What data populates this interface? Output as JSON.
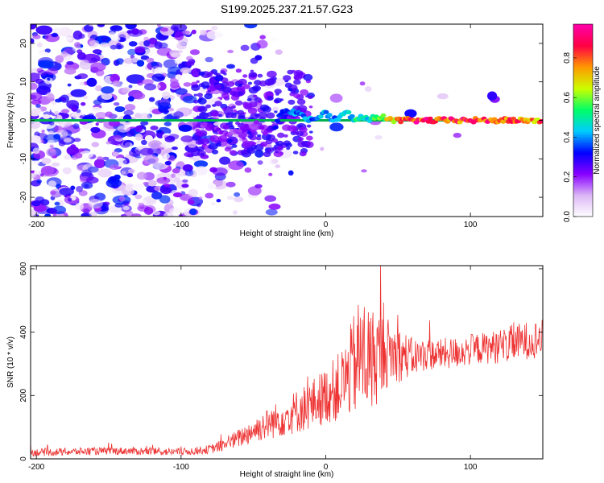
{
  "chart_data": [
    {
      "type": "heatmap",
      "title": "S199.2025.237.21.57.G23",
      "xlabel": "Height of straight line (km)",
      "ylabel": "Frequency (Hz)",
      "xlim": [
        -204,
        150
      ],
      "ylim": [
        -25,
        25
      ],
      "x_ticks": [
        "-200",
        "-100",
        "0",
        "100"
      ],
      "y_ticks": [
        "-20",
        "-10",
        "0",
        "10",
        "20"
      ],
      "colorbar": {
        "label": "Normalized spectral amplitude",
        "range": [
          0,
          0.97
        ],
        "ticks": [
          "0.0",
          "0.2",
          "0.4",
          "0.6",
          "0.8"
        ],
        "colors": [
          "#ffffff",
          "#dcb8f5",
          "#8800ff",
          "#0000ff",
          "#00ccff",
          "#00ff66",
          "#ccff00",
          "#ff9900",
          "#ff0044",
          "#ff00aa"
        ]
      },
      "ridge": {
        "x": [
          -85,
          -78,
          -70,
          -62,
          -55,
          -48,
          -42,
          -35,
          -30,
          -25,
          -20,
          -15,
          -10,
          -5,
          0,
          5,
          10,
          15,
          20,
          25,
          30,
          35,
          40,
          45,
          50,
          55,
          60,
          70,
          80,
          90,
          100,
          110,
          120,
          130,
          140,
          150
        ],
        "freq": [
          -1,
          -2,
          -4,
          -3,
          -2,
          -1,
          -3,
          -2,
          3,
          2,
          2,
          1,
          0,
          1,
          2,
          0,
          1,
          2,
          0,
          1,
          0,
          1,
          1,
          0,
          0,
          0,
          0,
          0,
          0,
          0,
          0,
          0,
          0,
          0,
          0,
          0
        ],
        "amp": [
          0.2,
          0.25,
          0.2,
          0.18,
          0.22,
          0.2,
          0.2,
          0.3,
          0.35,
          0.4,
          0.4,
          0.42,
          0.4,
          0.45,
          0.42,
          0.4,
          0.45,
          0.45,
          0.5,
          0.55,
          0.5,
          0.6,
          0.65,
          0.7,
          0.8,
          0.9,
          0.92,
          0.9,
          0.88,
          0.85,
          0.9,
          0.85,
          0.88,
          0.82,
          0.8,
          0.8
        ]
      }
    },
    {
      "type": "line",
      "xlabel": "Height of straight line (km)",
      "ylabel": "SNR (10 * v/v)",
      "xlim": [
        -204,
        150
      ],
      "ylim": [
        0,
        610
      ],
      "x_ticks": [
        "-200",
        "-100",
        "0",
        "100"
      ],
      "y_ticks": [
        "0",
        "200",
        "400",
        "600"
      ],
      "series": [
        {
          "name": "SNR",
          "color": "#ee3333",
          "x": [
            -204,
            -180,
            -160,
            -140,
            -120,
            -100,
            -90,
            -80,
            -70,
            -60,
            -50,
            -40,
            -30,
            -20,
            -10,
            0,
            10,
            15,
            20,
            25,
            30,
            35,
            40,
            50,
            60,
            70,
            80,
            90,
            100,
            110,
            120,
            130,
            140,
            150
          ],
          "mean": [
            20,
            22,
            24,
            25,
            23,
            22,
            25,
            30,
            45,
            65,
            90,
            110,
            130,
            150,
            170,
            200,
            230,
            260,
            300,
            330,
            310,
            320,
            340,
            330,
            320,
            330,
            330,
            335,
            345,
            350,
            355,
            365,
            375,
            380
          ],
          "noise": [
            12,
            12,
            12,
            12,
            12,
            12,
            12,
            14,
            20,
            30,
            40,
            50,
            60,
            70,
            80,
            90,
            110,
            130,
            170,
            200,
            180,
            150,
            120,
            90,
            60,
            50,
            50,
            50,
            50,
            50,
            55,
            60,
            60,
            60
          ]
        }
      ]
    }
  ]
}
